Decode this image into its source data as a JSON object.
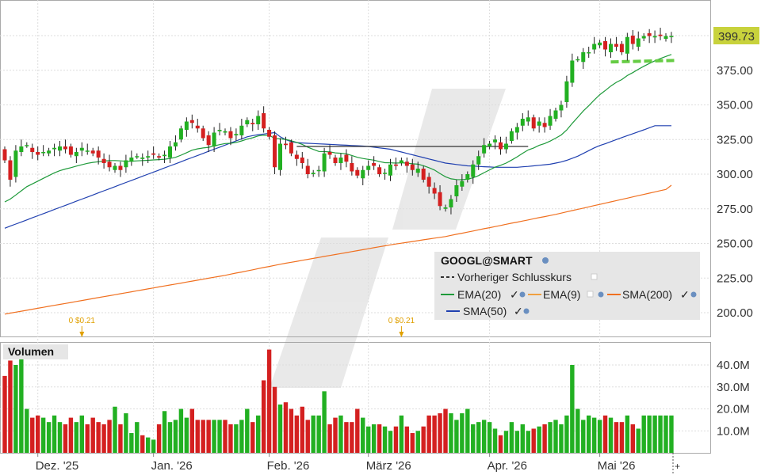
{
  "symbol": "GOOGL@SMART",
  "last_price_label": "399.73",
  "colors": {
    "up": "#22b022",
    "down": "#d42020",
    "ema20": "#1e9a3a",
    "ema9": "#f0a040",
    "sma200": "#f07020",
    "sma50": "#2040b0",
    "prev_close": "#333333",
    "last_price_bg": "#c8d23c",
    "dividend": "#e0a000",
    "support_line": "#66cc44"
  },
  "legend": {
    "title": "GOOGL@SMART",
    "items": [
      {
        "label": "Vorheriger Schlusskurs",
        "style": "dashed",
        "color": "#333333"
      },
      {
        "label": "EMA(20)",
        "style": "solid",
        "color": "#1e9a3a"
      },
      {
        "label": "EMA(9)",
        "style": "solid",
        "color": "#f0a040"
      },
      {
        "label": "SMA(200)",
        "style": "solid",
        "color": "#f07020"
      },
      {
        "label": "SMA(50)",
        "style": "solid",
        "color": "#2040b0"
      }
    ]
  },
  "volume_panel": {
    "title": "Volumen"
  },
  "dividends": [
    {
      "label": "0 $0.21",
      "bar_index": 14
    },
    {
      "label": "0 $0.21",
      "bar_index": 72
    }
  ],
  "chart_data": {
    "type": "candlestick",
    "price_axis": {
      "ticks": [
        200,
        225,
        250,
        275,
        300,
        325,
        350,
        375,
        400
      ],
      "tick_labels": [
        "200.00",
        "225.00",
        "250.00",
        "275.00",
        "300.00",
        "325.00",
        "350.00",
        "375.00",
        "399.73"
      ],
      "ylim": [
        175,
        405
      ]
    },
    "volume_axis": {
      "ticks": [
        10,
        20,
        30,
        40
      ],
      "tick_labels": [
        "10.0M",
        "20.0M",
        "30.0M",
        "40.0M"
      ],
      "unit": "M",
      "ylim": [
        0,
        48
      ]
    },
    "x_labels": [
      {
        "label": "Dez. '25",
        "bar_index": 6
      },
      {
        "label": "Jan. '26",
        "bar_index": 27
      },
      {
        "label": "Feb. '26",
        "bar_index": 48
      },
      {
        "label": "März '26",
        "bar_index": 66
      },
      {
        "label": "Apr. '26",
        "bar_index": 88
      },
      {
        "label": "Mai '26",
        "bar_index": 108
      }
    ],
    "bar_count": 122,
    "close": [
      310.0,
      296.0,
      317.0,
      320.0,
      321.0,
      316.0,
      314.0,
      316.0,
      317.0,
      319.0,
      320.0,
      318.0,
      314.0,
      316.0,
      319.0,
      317.0,
      315.0,
      312.0,
      308.0,
      305.0,
      306.0,
      303.0,
      310.0,
      312.0,
      313.0,
      312.0,
      313.0,
      314.0,
      312.0,
      314.0,
      320.0,
      323.0,
      333.0,
      338.0,
      337.0,
      333.0,
      326.0,
      321.0,
      330.0,
      332.0,
      331.0,
      326.0,
      329.0,
      335.0,
      339.0,
      336.0,
      342.0,
      333.0,
      327.0,
      305.0,
      322.0,
      321.0,
      315.0,
      311.0,
      308.0,
      300.0,
      301.0,
      303.0,
      315.0,
      314.0,
      308.0,
      312.0,
      309.0,
      302.0,
      299.0,
      303.0,
      306.0,
      306.0,
      300.0,
      301.0,
      307.0,
      306.0,
      310.0,
      306.0,
      303.0,
      304.0,
      296.0,
      291.0,
      286.0,
      277.0,
      276.0,
      282.0,
      292.0,
      295.0,
      300.0,
      307.0,
      313.0,
      321.0,
      322.0,
      325.0,
      318.0,
      322.0,
      331.0,
      334.0,
      340.0,
      341.0,
      333.0,
      338.0,
      334.0,
      342.0,
      346.0,
      350.0,
      367.0,
      382.0,
      383.0,
      388.0,
      388.0,
      394.0,
      395.0,
      390.0,
      394.0,
      392.0,
      388.0,
      399.0,
      394.0,
      398.0,
      399.7,
      399.7,
      399.7,
      399.7,
      399.7,
      399.7
    ],
    "ema20": [
      280.0,
      282.0,
      285.0,
      288.0,
      291.0,
      293.0,
      295.0,
      297.0,
      299.0,
      301.0,
      302.5,
      303.7,
      304.7,
      305.8,
      306.8,
      307.8,
      308.5,
      309.0,
      309.5,
      309.8,
      309.8,
      309.6,
      309.3,
      309.4,
      309.6,
      309.8,
      310.0,
      310.3,
      310.5,
      310.8,
      311.3,
      312.2,
      313.7,
      315.5,
      317.3,
      318.3,
      318.9,
      319.4,
      320.4,
      321.3,
      322.1,
      322.3,
      322.9,
      324.0,
      325.3,
      326.3,
      327.6,
      328.1,
      328.0,
      325.8,
      325.5,
      325.1,
      324.1,
      322.9,
      321.5,
      319.5,
      317.9,
      316.4,
      316.3,
      316.1,
      315.4,
      315.1,
      314.7,
      313.5,
      312.2,
      311.3,
      310.7,
      310.1,
      309.1,
      308.3,
      308.2,
      308.0,
      308.2,
      308.0,
      307.5,
      307.2,
      306.1,
      304.7,
      303.0,
      300.4,
      298.1,
      296.6,
      296.1,
      296.0,
      296.4,
      297.4,
      299.0,
      301.1,
      303.1,
      305.1,
      306.4,
      308.0,
      310.2,
      312.5,
      315.1,
      317.5,
      318.9,
      320.8,
      322.1,
      323.9,
      326.0,
      328.3,
      331.9,
      336.7,
      341.1,
      345.6,
      349.4,
      353.5,
      357.4,
      360.4,
      363.6,
      366.3,
      368.3,
      371.2,
      373.3,
      375.7,
      377.9,
      379.9,
      381.8,
      383.5,
      385.0,
      386.4
    ],
    "sma50": [
      261.0,
      262.5,
      264.0,
      265.5,
      267.0,
      268.5,
      270.0,
      271.5,
      273.0,
      274.5,
      276.0,
      277.5,
      279.0,
      280.5,
      282.0,
      283.5,
      285.0,
      286.5,
      288.0,
      289.5,
      291.0,
      292.5,
      294.0,
      295.5,
      297.0,
      298.5,
      300.0,
      301.5,
      303.0,
      304.5,
      306.0,
      307.5,
      309.0,
      310.5,
      312.0,
      313.5,
      315.0,
      316.5,
      318.0,
      319.5,
      321.0,
      322.5,
      324.0,
      325.5,
      327.0,
      327.8,
      328.5,
      329.0,
      329.5,
      330.0,
      327.0,
      325.0,
      323.5,
      322.8,
      322.5,
      322.3,
      322.1,
      321.9,
      321.7,
      321.5,
      321.3,
      321.1,
      320.9,
      320.7,
      320.5,
      320.3,
      320.0,
      319.5,
      319.0,
      318.5,
      318.0,
      317.0,
      316.0,
      315.0,
      314.0,
      313.0,
      312.0,
      311.0,
      310.0,
      309.0,
      308.0,
      307.5,
      307.0,
      306.5,
      306.0,
      305.8,
      305.6,
      305.4,
      305.2,
      305.0,
      305.0,
      305.0,
      305.0,
      305.0,
      305.3,
      305.6,
      306.0,
      306.4,
      306.8,
      307.2,
      308.0,
      308.8,
      310.0,
      311.5,
      313.0,
      315.0,
      317.0,
      319.0,
      320.7,
      322.0,
      323.5,
      325.0,
      326.4,
      327.8,
      329.2,
      330.6,
      332.0,
      333.5,
      335.0,
      335.0,
      335.0,
      335.0
    ],
    "sma200": [
      199.0,
      199.7,
      200.4,
      201.1,
      201.8,
      202.5,
      203.2,
      203.9,
      204.6,
      205.3,
      206.0,
      206.7,
      207.4,
      208.1,
      208.8,
      209.5,
      210.2,
      210.9,
      211.6,
      212.3,
      213.0,
      213.7,
      214.4,
      215.1,
      215.8,
      216.5,
      217.2,
      217.9,
      218.6,
      219.3,
      220.0,
      220.7,
      221.4,
      222.1,
      222.8,
      223.5,
      224.2,
      224.9,
      225.6,
      226.3,
      227.0,
      227.8,
      228.6,
      229.4,
      230.2,
      231.0,
      231.8,
      232.6,
      233.4,
      234.2,
      235.0,
      235.7,
      236.4,
      237.1,
      237.8,
      238.5,
      239.2,
      239.9,
      240.6,
      241.3,
      242.0,
      242.7,
      243.4,
      244.1,
      244.8,
      245.5,
      246.2,
      246.9,
      247.6,
      248.3,
      249.0,
      249.6,
      250.2,
      250.8,
      251.4,
      252.0,
      252.6,
      253.2,
      253.8,
      254.4,
      255.0,
      255.8,
      256.6,
      257.4,
      258.2,
      259.0,
      259.8,
      260.6,
      261.4,
      262.2,
      263.0,
      263.8,
      264.6,
      265.4,
      266.2,
      267.0,
      267.8,
      268.6,
      269.4,
      270.2,
      271.0,
      271.9,
      272.8,
      273.7,
      274.6,
      275.5,
      276.4,
      277.3,
      278.2,
      279.1,
      280.0,
      280.9,
      281.8,
      282.7,
      283.6,
      284.5,
      285.4,
      286.3,
      287.2,
      288.1,
      289.0,
      292.0
    ],
    "prev_close_level": 320,
    "volume": [
      35.0,
      42.0,
      40.0,
      47.0,
      20.0,
      16.0,
      17.0,
      16.0,
      14.0,
      17.0,
      14.0,
      13.0,
      16.0,
      14.0,
      17.0,
      13.0,
      16.0,
      14.0,
      13.0,
      15.0,
      21.0,
      13.0,
      18.0,
      9.0,
      14.0,
      8.0,
      7.0,
      6.0,
      13.0,
      19.0,
      14.0,
      15.0,
      20.0,
      16.0,
      20.0,
      15.0,
      15.0,
      15.0,
      15.0,
      15.0,
      15.0,
      13.0,
      13.0,
      15.0,
      20.0,
      14.0,
      17.0,
      33.0,
      47.0,
      30.0,
      22.0,
      23.0,
      20.0,
      17.0,
      21.0,
      15.0,
      17.0,
      17.0,
      28.0,
      13.0,
      16.0,
      17.0,
      14.0,
      14.0,
      20.0,
      16.0,
      12.0,
      13.0,
      13.0,
      12.0,
      10.0,
      12.0,
      17.0,
      12.0,
      9.0,
      10.0,
      12.0,
      17.0,
      17.0,
      18.0,
      20.0,
      18.0,
      15.0,
      18.0,
      20.0,
      13.0,
      14.0,
      15.0,
      14.0,
      11.0,
      8.0,
      10.0,
      14.0,
      10.0,
      13.0,
      10.0,
      11.0,
      12.0,
      13.0,
      14.0,
      15.0,
      13.0,
      17.0,
      40.0,
      20.0,
      15.0,
      17.0,
      16.0,
      15.0,
      17.0,
      16.0,
      14.0,
      14.0,
      17.0,
      13.0,
      11.0,
      17.0,
      17.0,
      17.0,
      17.0,
      17.0,
      17.0
    ],
    "last_price": 399.73,
    "support_level": 381
  }
}
